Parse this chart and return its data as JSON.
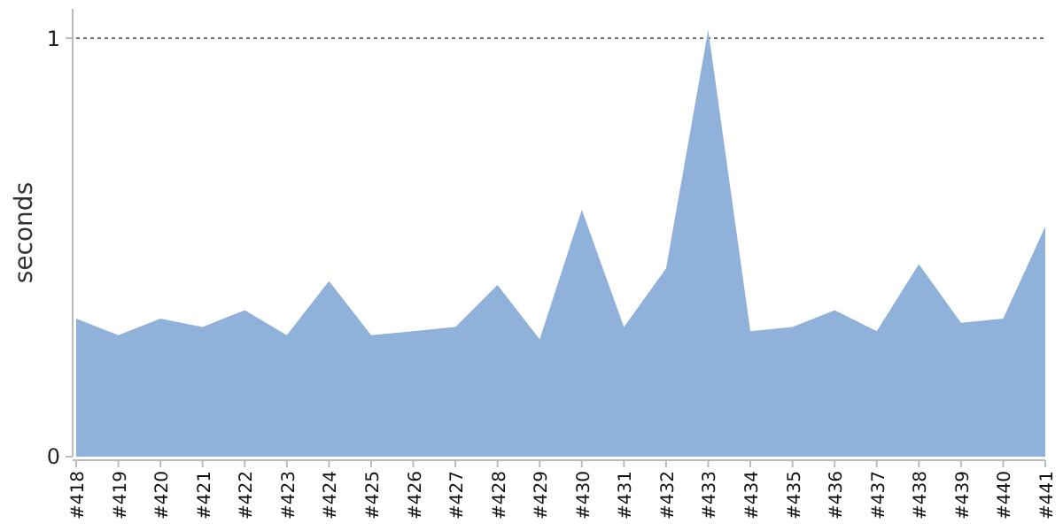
{
  "chart_data": {
    "type": "area",
    "ylabel": "seconds",
    "categories": [
      "#418",
      "#419",
      "#420",
      "#421",
      "#422",
      "#423",
      "#424",
      "#425",
      "#426",
      "#427",
      "#428",
      "#429",
      "#430",
      "#431",
      "#432",
      "#433",
      "#434",
      "#435",
      "#436",
      "#437",
      "#438",
      "#439",
      "#440",
      "#441"
    ],
    "series": [
      {
        "color": "#8fb1da",
        "values": [
          0.33,
          0.29,
          0.33,
          0.31,
          0.35,
          0.29,
          0.42,
          0.29,
          0.3,
          0.31,
          0.41,
          0.28,
          0.59,
          0.31,
          0.45,
          1.02,
          0.3,
          0.31,
          0.35,
          0.3,
          0.46,
          0.32,
          0.33,
          0.55
        ]
      }
    ],
    "ylim": [
      0,
      1.07
    ],
    "yticks": [
      0,
      1
    ],
    "grid": "y",
    "line_style": "dotted"
  }
}
